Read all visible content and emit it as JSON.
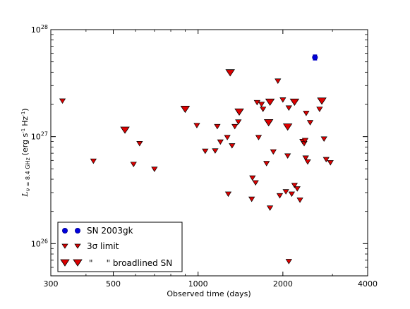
{
  "chart_data": {
    "type": "scatter",
    "xlabel": "Observed time (days)",
    "ylabel": {
      "L": "L",
      "sub": "ν = 8.4 GHz",
      "units_a": "(erg s",
      "units_b": "Hz",
      "units_c": ")",
      "exp": "-1"
    },
    "x_scale": "log",
    "y_scale": "log",
    "xlim": [
      300,
      4000
    ],
    "ylim": [
      5e+25,
      1e+28
    ],
    "x_ticks": [
      {
        "value": 300,
        "label": "300"
      },
      {
        "value": 500,
        "label": "500"
      },
      {
        "value": 1000,
        "label": "1000"
      },
      {
        "value": 2000,
        "label": "2000"
      },
      {
        "value": 4000,
        "label": "4000"
      }
    ],
    "y_ticks": [
      {
        "value": 1e+26,
        "base": "10",
        "exp": "26"
      },
      {
        "value": 1e+27,
        "base": "10",
        "exp": "27"
      },
      {
        "value": 1e+28,
        "base": "10",
        "exp": "28"
      }
    ],
    "grid": false,
    "legend": {
      "position": "bottom-left",
      "entries": [
        {
          "marker": "circle",
          "label": "SN 2003gk"
        },
        {
          "marker": "triangle-small",
          "label": "3σ limit"
        },
        {
          "marker": "triangle-large",
          "label": "\"     \" broadlined SN"
        }
      ]
    },
    "colors": {
      "detection": "#0000dd",
      "limit": "#dd0000",
      "edge": "#000000"
    },
    "series": [
      {
        "name": "SN 2003gk",
        "marker": "circle",
        "points": [
          {
            "x": 2600,
            "y": 5.5e+27,
            "yerr": 3e+26
          }
        ]
      },
      {
        "name": "3σ limit",
        "marker": "triangle-small",
        "points": [
          {
            "x": 330,
            "y": 2.15e+27
          },
          {
            "x": 425,
            "y": 5.9e+26
          },
          {
            "x": 590,
            "y": 5.5e+26
          },
          {
            "x": 620,
            "y": 8.6e+26
          },
          {
            "x": 700,
            "y": 4.95e+26
          },
          {
            "x": 990,
            "y": 1.27e+27
          },
          {
            "x": 1060,
            "y": 7.3e+26
          },
          {
            "x": 1150,
            "y": 7.35e+26
          },
          {
            "x": 1170,
            "y": 1.24e+27
          },
          {
            "x": 1200,
            "y": 8.9e+26
          },
          {
            "x": 1270,
            "y": 9.8e+26
          },
          {
            "x": 1280,
            "y": 2.9e+26
          },
          {
            "x": 1350,
            "y": 1.24e+27
          },
          {
            "x": 1390,
            "y": 1.37e+27
          },
          {
            "x": 1320,
            "y": 8.2e+26
          },
          {
            "x": 1550,
            "y": 2.6e+26
          },
          {
            "x": 1560,
            "y": 4.1e+26
          },
          {
            "x": 1600,
            "y": 3.7e+26
          },
          {
            "x": 1620,
            "y": 2.08e+27
          },
          {
            "x": 1640,
            "y": 9.8e+26
          },
          {
            "x": 1680,
            "y": 2e+27
          },
          {
            "x": 1700,
            "y": 1.8e+27
          },
          {
            "x": 1750,
            "y": 5.6e+26
          },
          {
            "x": 1800,
            "y": 2.15e+26
          },
          {
            "x": 1850,
            "y": 7.2e+26
          },
          {
            "x": 1920,
            "y": 3.3e+27
          },
          {
            "x": 1950,
            "y": 2.8e+26
          },
          {
            "x": 2000,
            "y": 2.2e+27
          },
          {
            "x": 2050,
            "y": 3.05e+26
          },
          {
            "x": 2080,
            "y": 6.6e+26
          },
          {
            "x": 2100,
            "y": 1.85e+27
          },
          {
            "x": 2150,
            "y": 2.9e+26
          },
          {
            "x": 2200,
            "y": 3.5e+26
          },
          {
            "x": 2250,
            "y": 3.25e+26
          },
          {
            "x": 2300,
            "y": 2.55e+26
          },
          {
            "x": 2350,
            "y": 9e+26
          },
          {
            "x": 2380,
            "y": 8.6e+26
          },
          {
            "x": 2400,
            "y": 9.2e+26
          },
          {
            "x": 2410,
            "y": 6.3e+26
          },
          {
            "x": 2420,
            "y": 1.65e+27
          },
          {
            "x": 2450,
            "y": 5.8e+26
          },
          {
            "x": 2500,
            "y": 1.35e+27
          },
          {
            "x": 2700,
            "y": 1.8e+27
          },
          {
            "x": 2800,
            "y": 9.5e+26
          },
          {
            "x": 2850,
            "y": 6.1e+26
          },
          {
            "x": 2950,
            "y": 5.7e+26
          },
          {
            "x": 2100,
            "y": 6.8e+25
          }
        ]
      },
      {
        "name": "broadlined SN",
        "marker": "triangle-large",
        "points": [
          {
            "x": 550,
            "y": 1.15e+27
          },
          {
            "x": 900,
            "y": 1.8e+27
          },
          {
            "x": 1300,
            "y": 3.95e+27
          },
          {
            "x": 1400,
            "y": 1.7e+27
          },
          {
            "x": 1780,
            "y": 1.35e+27
          },
          {
            "x": 1800,
            "y": 2.1e+27
          },
          {
            "x": 2080,
            "y": 1.23e+27
          },
          {
            "x": 2200,
            "y": 2.1e+27
          },
          {
            "x": 2750,
            "y": 2.15e+27
          }
        ]
      }
    ]
  }
}
